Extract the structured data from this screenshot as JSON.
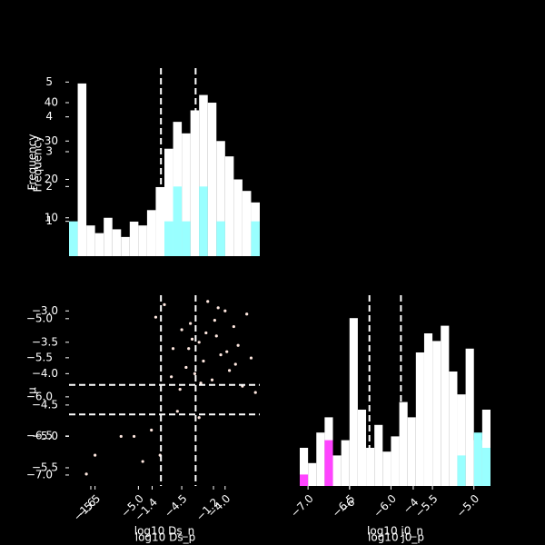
{
  "chart_data": [
    {
      "type": "histogram",
      "ylabel": "Frequency",
      "y2label": "Frequency",
      "xlim": [
        -5.8,
        -3.6
      ],
      "bins": [
        -5.8,
        -5.7,
        -5.6,
        -5.5,
        -5.4,
        -5.3,
        -5.2,
        -5.1,
        -5.0,
        -4.9,
        -4.8,
        -4.7,
        -4.6,
        -4.5,
        -4.4,
        -4.3,
        -4.2,
        -4.1,
        -4.0,
        -3.9,
        -3.8,
        -3.7,
        -3.6
      ],
      "series": [
        {
          "color": "#ffffff",
          "values": [
            9,
            45,
            8,
            6,
            10,
            7,
            5,
            9,
            8,
            12,
            18,
            28,
            35,
            32,
            38,
            42,
            40,
            30,
            26,
            20,
            17,
            14
          ]
        },
        {
          "color": "#99ffff",
          "axis": "y2",
          "values": [
            1,
            0,
            0,
            0,
            0,
            0,
            0,
            0,
            0,
            0,
            0,
            1,
            2,
            1,
            0,
            2,
            0,
            1,
            0,
            0,
            0,
            1
          ]
        }
      ],
      "ylim": [
        0,
        49
      ],
      "yticks": [
        10,
        20,
        30,
        40
      ],
      "y2lim": [
        0,
        5.4
      ],
      "y2ticks": [
        1,
        2,
        3,
        4,
        5
      ],
      "vlines": [
        -4.74,
        -4.34
      ]
    },
    {
      "type": "scatter",
      "xlabel": "log10 Ds_n",
      "x2label": "log10 Ds_p",
      "ylabel": "μ",
      "color": "#ffe8e0",
      "xlim": [
        -5.8,
        -3.6
      ],
      "xticks": [
        {
          "value": -5.5,
          "label": "−5.5"
        },
        {
          "value": -5.0,
          "label": "−5.0"
        },
        {
          "value": -4.5,
          "label": "−4.5"
        },
        {
          "value": -4.0,
          "label": "−4.0"
        }
      ],
      "x2lim": [
        -1.671,
        -1.049
      ],
      "x2ticks": [
        {
          "value": -1.6,
          "label": "−1.6"
        },
        {
          "value": -1.4,
          "label": "−1.4"
        },
        {
          "value": -1.2,
          "label": "−1.2"
        }
      ],
      "ylim": [
        -5.79,
        -2.75
      ],
      "yticks": [
        {
          "value": -3.0,
          "label": "−3.0"
        },
        {
          "value": -3.5,
          "label": "−3.5"
        },
        {
          "value": -4.0,
          "label": "−4.0"
        },
        {
          "value": -4.5,
          "label": "−4.5"
        },
        {
          "value": -5.0,
          "label": "−5.0"
        },
        {
          "value": -5.5,
          "label": "−5.5"
        }
      ],
      "y2lim": [
        -7.14,
        -4.7
      ],
      "y2ticks": [
        {
          "value": -5.0,
          "label": "−5.0"
        },
        {
          "value": -5.5,
          "label": "−5.5"
        },
        {
          "value": -6.0,
          "label": "−6.0"
        },
        {
          "value": -6.5,
          "label": "−6.5"
        },
        {
          "value": -7.0,
          "label": "−7.0"
        }
      ],
      "vlines": [
        -4.74,
        -4.34
      ],
      "hlines": [
        -4.18,
        -4.65
      ],
      "x": [
        -4.8,
        -4.7,
        -4.6,
        -4.5,
        -4.45,
        -4.4,
        -4.35,
        -4.3,
        -4.25,
        -4.2,
        -4.15,
        -4.1,
        -4.05,
        -4.0,
        -3.95,
        -3.9,
        -3.85,
        -3.8,
        -3.75,
        -3.7,
        -4.62,
        -4.38,
        -4.28,
        -4.12,
        -3.98,
        -4.52,
        -4.22,
        -3.88,
        -4.42,
        -4.08,
        -5.6,
        -5.5,
        -5.2,
        -5.05,
        -4.85,
        -4.95,
        -4.55,
        -4.3,
        -3.65,
        -4.75
      ],
      "y": [
        -3.1,
        -2.9,
        -3.6,
        -3.3,
        -3.9,
        -3.2,
        -4.0,
        -3.5,
        -3.8,
        -2.85,
        -4.1,
        -3.4,
        -3.7,
        -3.0,
        -3.95,
        -3.25,
        -3.55,
        -4.2,
        -3.05,
        -3.75,
        -4.05,
        -3.45,
        -4.15,
        -3.15,
        -3.65,
        -4.25,
        -3.35,
        -3.85,
        -3.6,
        -2.95,
        -5.6,
        -5.3,
        -5.0,
        -5.0,
        -4.9,
        -5.4,
        -4.6,
        -4.7,
        -4.3,
        -5.3
      ]
    },
    {
      "type": "histogram",
      "xlabel": "log10 j0_n",
      "x2label": "log10 j0_p",
      "xlim": [
        -7.1,
        -4.8
      ],
      "xticks": [
        {
          "value": -7.0,
          "label": "−7.0"
        },
        {
          "value": -6.5,
          "label": "−6.5"
        },
        {
          "value": -6.0,
          "label": "−6.0"
        },
        {
          "value": -5.5,
          "label": "−5.5"
        },
        {
          "value": -5.0,
          "label": "−5.0"
        }
      ],
      "x2lim": [
        -7.57,
        -1.57
      ],
      "x2ticks": [
        {
          "value": -6,
          "label": "−6"
        },
        {
          "value": -4,
          "label": "−4"
        }
      ],
      "bins": [
        -7.1,
        -7.0,
        -6.9,
        -6.8,
        -6.7,
        -6.6,
        -6.5,
        -6.4,
        -6.3,
        -6.2,
        -6.1,
        -6.0,
        -5.9,
        -5.8,
        -5.7,
        -5.6,
        -5.5,
        -5.4,
        -5.3,
        -5.2,
        -5.1,
        -5.0,
        -4.9,
        -4.8
      ],
      "series": [
        {
          "color": "#ffffff",
          "values": [
            10,
            6,
            14,
            18,
            8,
            12,
            44,
            20,
            10,
            16,
            9,
            13,
            22,
            18,
            35,
            40,
            38,
            42,
            30,
            24,
            36,
            12,
            20
          ]
        },
        {
          "color": "#ff44ff",
          "values": [
            3,
            0,
            0,
            12,
            0,
            0,
            0,
            0,
            0,
            0,
            0,
            0,
            0,
            0,
            0,
            0,
            0,
            0,
            0,
            0,
            0,
            0,
            0
          ]
        },
        {
          "color": "#99ffff",
          "values": [
            0,
            0,
            0,
            0,
            0,
            0,
            0,
            0,
            0,
            0,
            0,
            0,
            0,
            0,
            0,
            0,
            0,
            0,
            0,
            8,
            0,
            14,
            10
          ]
        }
      ],
      "ylim": [
        0,
        50
      ],
      "vlines": [
        -6.26,
        -5.88
      ]
    }
  ]
}
